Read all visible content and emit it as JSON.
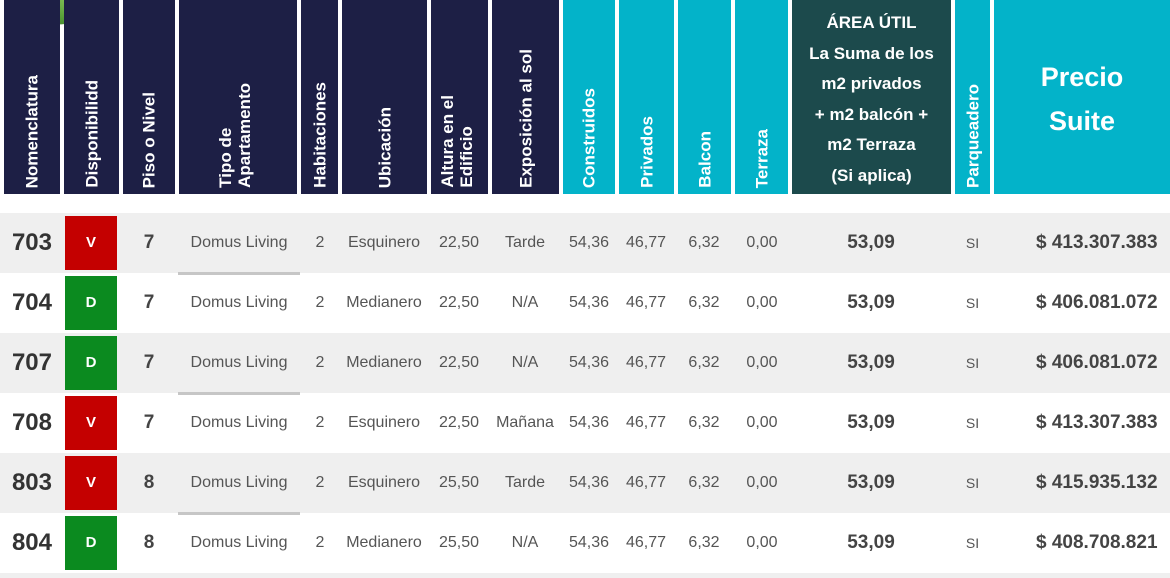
{
  "headers": {
    "nomenclatura": "Nomenclatura",
    "disponibilidad": "Disponibilidd",
    "piso": "Piso o Nivel",
    "tipo": "Tipo de\nApartamento",
    "habitaciones": "Habitaciones",
    "ubicacion": "Ubicación",
    "altura": "Altura en el\nEdificio",
    "exposicion": "Exposición al sol",
    "construidos": "Construidos",
    "privados": "Privados",
    "balcon": "Balcon",
    "terraza": "Terraza",
    "area_util": "ÁREA ÚTIL\nLa Suma de los\nm2 privados\n+ m2 balcón +\nm2 Terraza\n(Si aplica)",
    "parqueadero": "Parqueadero",
    "precio": "Precio\nSuite"
  },
  "colors": {
    "navy": "#1d1f45",
    "teal": "#03b3c9",
    "dark_teal": "#1c4a4c",
    "vendido": "#c40000",
    "disponible": "#0b8a1f"
  },
  "rows": [
    {
      "nomenclatura": "703",
      "disp": "V",
      "piso": "7",
      "tipo": "Domus Living",
      "hab": "2",
      "ubicacion": "Esquinero",
      "altura": "22,50",
      "exposicion": "Tarde",
      "construidos": "54,36",
      "privados": "46,77",
      "balcon": "6,32",
      "terraza": "0,00",
      "area": "53,09",
      "parq": "SI",
      "precio": "$ 413.307.383"
    },
    {
      "nomenclatura": "704",
      "disp": "D",
      "piso": "7",
      "tipo": "Domus Living",
      "hab": "2",
      "ubicacion": "Medianero",
      "altura": "22,50",
      "exposicion": "N/A",
      "construidos": "54,36",
      "privados": "46,77",
      "balcon": "6,32",
      "terraza": "0,00",
      "area": "53,09",
      "parq": "SI",
      "precio": "$ 406.081.072"
    },
    {
      "nomenclatura": "707",
      "disp": "D",
      "piso": "7",
      "tipo": "Domus Living",
      "hab": "2",
      "ubicacion": "Medianero",
      "altura": "22,50",
      "exposicion": "N/A",
      "construidos": "54,36",
      "privados": "46,77",
      "balcon": "6,32",
      "terraza": "0,00",
      "area": "53,09",
      "parq": "SI",
      "precio": "$ 406.081.072"
    },
    {
      "nomenclatura": "708",
      "disp": "V",
      "piso": "7",
      "tipo": "Domus Living",
      "hab": "2",
      "ubicacion": "Esquinero",
      "altura": "22,50",
      "exposicion": "Mañana",
      "construidos": "54,36",
      "privados": "46,77",
      "balcon": "6,32",
      "terraza": "0,00",
      "area": "53,09",
      "parq": "SI",
      "precio": "$ 413.307.383"
    },
    {
      "nomenclatura": "803",
      "disp": "V",
      "piso": "8",
      "tipo": "Domus Living",
      "hab": "2",
      "ubicacion": "Esquinero",
      "altura": "25,50",
      "exposicion": "Tarde",
      "construidos": "54,36",
      "privados": "46,77",
      "balcon": "6,32",
      "terraza": "0,00",
      "area": "53,09",
      "parq": "SI",
      "precio": "$ 415.935.132"
    },
    {
      "nomenclatura": "804",
      "disp": "D",
      "piso": "8",
      "tipo": "Domus Living",
      "hab": "2",
      "ubicacion": "Medianero",
      "altura": "25,50",
      "exposicion": "N/A",
      "construidos": "54,36",
      "privados": "46,77",
      "balcon": "6,32",
      "terraza": "0,00",
      "area": "53,09",
      "parq": "SI",
      "precio": "$ 408.708.821"
    }
  ]
}
